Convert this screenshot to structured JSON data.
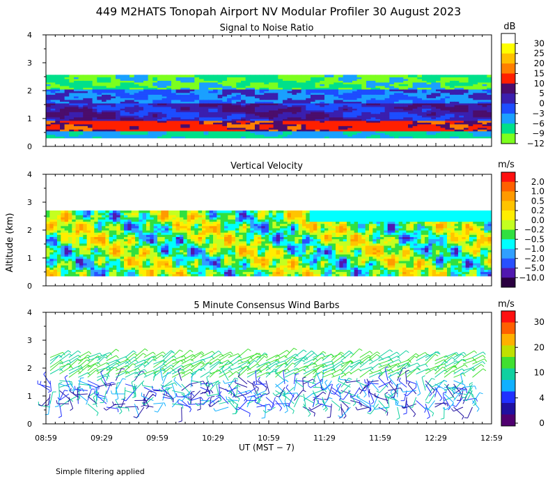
{
  "chart_data": {
    "title": "449 M2HATS Tonopah Airport NV Modular Profiler 30 August 2023",
    "ylabel": "Altitude (km)",
    "xlabel": "UT  (MST − 7)",
    "footnote": "Simple filtering applied",
    "x_ticks": [
      "08:59",
      "09:29",
      "09:59",
      "10:29",
      "10:59",
      "11:29",
      "11:59",
      "12:29",
      "12:59"
    ],
    "xlim_minutes": [
      0,
      240
    ],
    "panels": [
      {
        "type": "heatmap",
        "title": "Signal to Noise Ratio",
        "units": "dB",
        "ylim": [
          0,
          4
        ],
        "y_ticks": [
          "0",
          "1",
          "2",
          "3",
          "4"
        ],
        "colorbar": {
          "labels": [
            "30",
            "25",
            "20",
            "15",
            "10",
            "5",
            "0",
            "−3",
            "−6",
            "−9",
            "−12"
          ],
          "colors": [
            "#ffffff",
            "#ffff00",
            "#ffc000",
            "#ff7f00",
            "#ff2000",
            "#4b0d6b",
            "#3a1fae",
            "#1d4dff",
            "#1aa0ff",
            "#00e08a",
            "#7cff1e"
          ]
        }
      },
      {
        "type": "heatmap",
        "title": "Vertical Velocity",
        "units": "m/s",
        "ylim": [
          0,
          4
        ],
        "y_ticks": [
          "0",
          "1",
          "2",
          "3",
          "4"
        ],
        "colorbar": {
          "labels": [
            "2.0",
            "1.0",
            "0.5",
            "0.2",
            "0.0",
            "−0.2",
            "−0.5",
            "−1.0",
            "−2.0",
            "−5.0",
            "−10.0"
          ],
          "colors": [
            "#ff1010",
            "#ff6000",
            "#ff9a00",
            "#ffc400",
            "#ffee00",
            "#c4ff20",
            "#30e040",
            "#00ffff",
            "#30a0ff",
            "#2850ff",
            "#5018b0",
            "#2a0040"
          ]
        }
      },
      {
        "type": "wind_barbs",
        "title": "5 Minute Consensus Wind Barbs",
        "units": "m/s",
        "ylim": [
          0,
          4
        ],
        "y_ticks": [
          "0",
          "1",
          "2",
          "3",
          "4"
        ],
        "colorbar": {
          "labels": [
            "30",
            "20",
            "10",
            "4",
            "0"
          ],
          "colors": [
            "#ff1010",
            "#ff6000",
            "#ffb000",
            "#c0e000",
            "#40e030",
            "#10d0a0",
            "#10b0ff",
            "#2030ff",
            "#2010a0",
            "#500070"
          ]
        }
      }
    ]
  }
}
